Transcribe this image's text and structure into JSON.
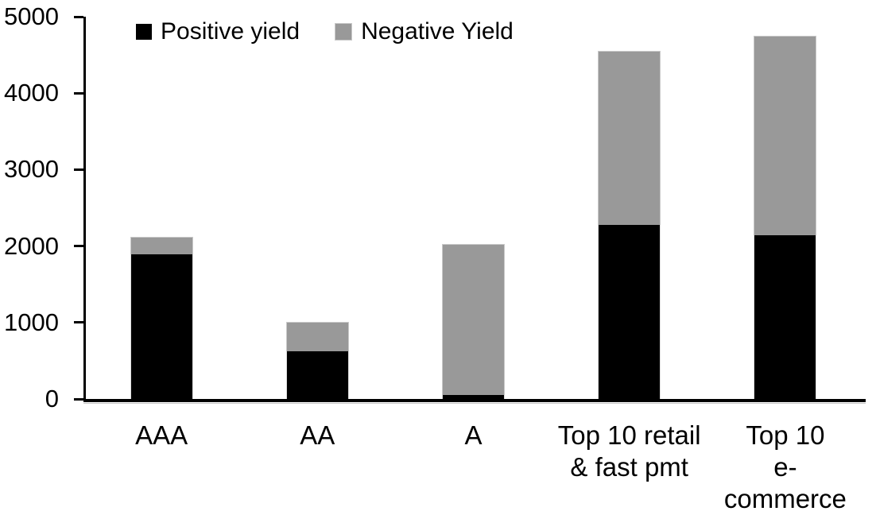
{
  "chart_data": {
    "type": "bar",
    "stacked": true,
    "title": "",
    "xlabel": "",
    "ylabel": "",
    "categories": [
      "AAA",
      "AA",
      "A",
      "Top 10 retail\n& fast pmt",
      "Top 10\ne-commerce"
    ],
    "series": [
      {
        "name": "Positive yield",
        "color": "#000000",
        "values": [
          1890,
          620,
          50,
          2280,
          2140
        ]
      },
      {
        "name": "Negative Yield",
        "color": "#999999",
        "values": [
          230,
          390,
          1980,
          2270,
          2610
        ]
      }
    ],
    "totals": [
      2120,
      1010,
      2030,
      4550,
      4750
    ],
    "ylim": [
      0,
      5000
    ],
    "yticks": [
      0,
      1000,
      2000,
      3000,
      4000,
      5000
    ],
    "legend_position": "top",
    "grid": false,
    "axis_color": "#000000",
    "background_color": "#ffffff"
  }
}
